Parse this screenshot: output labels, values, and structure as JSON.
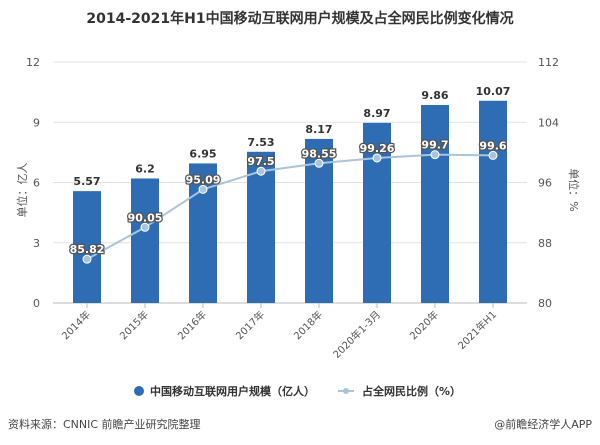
{
  "chart_data": {
    "type": "bar+line",
    "title": "2014-2021年H1中国移动互联网用户规模及占全网民比例变化情况",
    "categories": [
      "2014年",
      "2015年",
      "2016年",
      "2017年",
      "2018年",
      "2020年1-3月",
      "2020年",
      "2021年H1"
    ],
    "series": [
      {
        "name": "中国移动互联网用户规模（亿人）",
        "type": "bar",
        "axis": "left",
        "color": "#2e6db4",
        "values": [
          5.57,
          6.2,
          6.95,
          7.53,
          8.17,
          8.97,
          9.86,
          10.07
        ]
      },
      {
        "name": "占全网民比例（%）",
        "type": "line",
        "axis": "right",
        "color": "#a9c4dc",
        "values": [
          85.82,
          90.05,
          95.09,
          97.5,
          98.55,
          99.26,
          99.7,
          99.6
        ]
      }
    ],
    "ylabel": "单位：亿人",
    "y2label": "单位：%",
    "ylim": [
      0,
      12
    ],
    "yticks": [
      0,
      3,
      6,
      9,
      12
    ],
    "y2lim": [
      80,
      112
    ],
    "y2ticks": [
      80,
      88,
      96,
      104,
      112
    ],
    "grid": "horizontal",
    "legend": "bottom"
  },
  "footer": {
    "source": "资料来源：CNNIC 前瞻产业研究院整理",
    "credit": "@前瞻经济学人APP"
  }
}
